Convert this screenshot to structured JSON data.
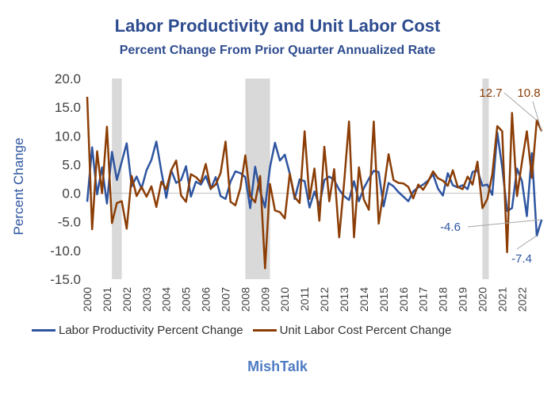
{
  "chart_data": {
    "type": "line",
    "title": "Labor Productivity and Unit Labor Cost",
    "subtitle": "Percent Change From Prior Quarter Annualized Rate",
    "ylabel": "Percent Change",
    "xlabel": "",
    "ylim": [
      -15,
      20
    ],
    "yticks": [
      "20.0",
      "15.0",
      "10.0",
      "5.0",
      "0.0",
      "-5.0",
      "-10.0",
      "-15.0"
    ],
    "xticks": [
      "2000",
      "2001",
      "2002",
      "2003",
      "2004",
      "2005",
      "2006",
      "2007",
      "2008",
      "2009",
      "2010",
      "2011",
      "2012",
      "2013",
      "2014",
      "2015",
      "2016",
      "2017",
      "2018",
      "2019",
      "2020",
      "2021",
      "2022"
    ],
    "x_start": "2000 Q1",
    "x_end": "2022 Q2",
    "recessions": [
      {
        "start": "2001 Q2",
        "end": "2001 Q4"
      },
      {
        "start": "2008 Q1",
        "end": "2009 Q2"
      },
      {
        "start": "2020 Q1",
        "end": "2020 Q2"
      }
    ],
    "series": [
      {
        "name": "Labor Productivity Percent Change",
        "color": "#2E55A0",
        "values": [
          -1.5,
          8.0,
          -0.2,
          4.5,
          -1.8,
          7.2,
          2.3,
          5.5,
          8.7,
          1.2,
          2.9,
          0.8,
          4.0,
          5.8,
          9.0,
          3.8,
          -0.8,
          4.0,
          1.8,
          2.3,
          4.7,
          -0.6,
          2.0,
          1.5,
          3.0,
          0.7,
          2.8,
          -0.5,
          -1.0,
          2.0,
          3.8,
          3.5,
          2.8,
          -2.6,
          4.6,
          0.3,
          -2.5,
          4.5,
          8.8,
          5.7,
          6.7,
          3.4,
          -1.0,
          2.4,
          2.1,
          -2.5,
          0.3,
          -2.2,
          2.3,
          2.9,
          2.3,
          0.6,
          -0.5,
          -1.2,
          2.1,
          -1.4,
          0.9,
          2.5,
          3.9,
          3.7,
          -2.3,
          1.8,
          1.2,
          0.2,
          -0.6,
          -1.4,
          0.3,
          1.0,
          1.5,
          2.2,
          3.3,
          0.8,
          -0.4,
          3.5,
          1.4,
          1.0,
          1.4,
          0.7,
          3.7,
          4.0,
          1.3,
          1.5,
          -0.3,
          10.6,
          4.5,
          -3.1,
          -2.6,
          4.3,
          2.1,
          -4.0,
          7.0,
          -7.4,
          -4.6
        ],
        "annotations": [
          {
            "label": "-4.6",
            "value": -4.6
          },
          {
            "label": "-7.4",
            "value": -7.4
          }
        ]
      },
      {
        "name": "Unit Labor Cost Percent Change",
        "color": "#8B3D05",
        "values": [
          16.8,
          -6.3,
          7.3,
          0.0,
          11.6,
          -5.2,
          -1.7,
          -1.4,
          -6.2,
          3.0,
          -0.5,
          1.1,
          -0.6,
          1.2,
          -2.4,
          2.0,
          0.7,
          4.0,
          5.7,
          -0.4,
          -1.5,
          3.3,
          2.8,
          1.9,
          5.1,
          0.8,
          1.5,
          3.5,
          9.0,
          -1.5,
          -2.1,
          0.9,
          6.6,
          -0.5,
          -1.6,
          3.0,
          -13.1,
          1.6,
          -3.0,
          -3.3,
          -4.4,
          3.4,
          -0.7,
          -1.7,
          10.8,
          -1.0,
          4.3,
          -4.8,
          8.1,
          -1.4,
          4.2,
          -7.7,
          1.8,
          12.5,
          -7.7,
          4.5,
          -1.1,
          -2.9,
          12.5,
          -5.3,
          0.5,
          6.8,
          2.3,
          1.8,
          1.7,
          1.1,
          -0.9,
          1.5,
          0.6,
          2.0,
          3.8,
          2.6,
          2.2,
          1.3,
          4.0,
          1.1,
          0.7,
          2.9,
          1.5,
          5.5,
          -2.6,
          -1.0,
          3.3,
          11.7,
          10.8,
          -10.3,
          14.0,
          -0.5,
          5.4,
          10.8,
          2.7,
          12.7,
          10.8
        ],
        "annotations": [
          {
            "label": "12.7",
            "value": 12.7
          },
          {
            "label": "10.8",
            "value": 10.8
          }
        ]
      }
    ],
    "legend_position": "bottom",
    "grid": false
  },
  "footer": {
    "brand": "MishTalk"
  }
}
